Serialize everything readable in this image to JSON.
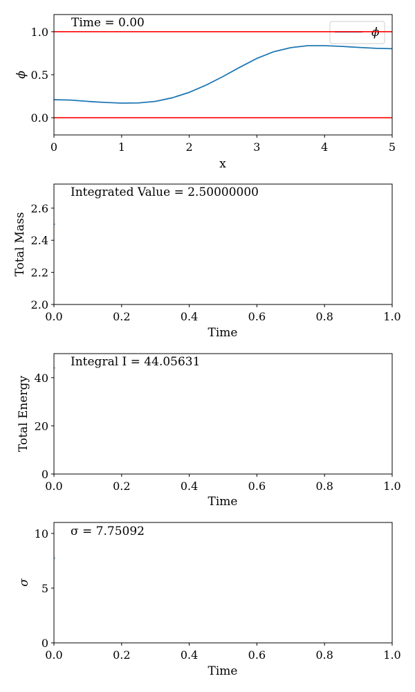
{
  "chart_data": [
    {
      "type": "line",
      "xlabel": "x",
      "ylabel": "ϕ",
      "xlim": [
        0,
        5
      ],
      "ylim": [
        -0.2,
        1.2
      ],
      "xticks": [
        0,
        1,
        2,
        3,
        4,
        5
      ],
      "xtick_labels": [
        "0",
        "1",
        "2",
        "3",
        "4",
        "5"
      ],
      "yticks": [
        0.0,
        0.5,
        1.0
      ],
      "ytick_labels": [
        "0.0",
        "0.5",
        "1.0"
      ],
      "annotation": "Time = 0.00",
      "legend_position": "top-right",
      "grid": false,
      "series": [
        {
          "name": "ϕ",
          "color": "#1f77b4",
          "x": [
            0,
            0.25,
            0.5,
            0.75,
            1.0,
            1.25,
            1.5,
            1.75,
            2.0,
            2.25,
            2.5,
            2.75,
            3.0,
            3.25,
            3.5,
            3.75,
            4.0,
            4.25,
            4.5,
            4.75,
            5.0
          ],
          "y": [
            0.21,
            0.205,
            0.19,
            0.178,
            0.17,
            0.172,
            0.19,
            0.232,
            0.295,
            0.38,
            0.48,
            0.588,
            0.69,
            0.768,
            0.815,
            0.838,
            0.838,
            0.83,
            0.818,
            0.808,
            0.803
          ]
        }
      ],
      "hlines": [
        {
          "y": 0,
          "color": "#ff0000"
        },
        {
          "y": 1,
          "color": "#ff0000"
        }
      ]
    },
    {
      "type": "line",
      "xlabel": "Time",
      "ylabel": "Total Mass",
      "xlim": [
        0,
        1
      ],
      "ylim": [
        2.0,
        2.75
      ],
      "xticks": [
        0,
        0.2,
        0.4,
        0.6,
        0.8,
        1.0
      ],
      "xtick_labels": [
        "0.0",
        "0.2",
        "0.4",
        "0.6",
        "0.8",
        "1.0"
      ],
      "yticks": [
        2.0,
        2.2,
        2.4,
        2.6
      ],
      "ytick_labels": [
        "2.0",
        "2.2",
        "2.4",
        "2.6"
      ],
      "annotation": "Integrated Value = 2.50000000",
      "grid": false,
      "series": [
        {
          "color": "#1f77b4",
          "x": [
            0
          ],
          "y": [
            2.5
          ]
        }
      ]
    },
    {
      "type": "line",
      "xlabel": "Time",
      "ylabel": "Total Energy",
      "xlim": [
        0,
        1
      ],
      "ylim": [
        0,
        50
      ],
      "xticks": [
        0,
        0.2,
        0.4,
        0.6,
        0.8,
        1.0
      ],
      "xtick_labels": [
        "0.0",
        "0.2",
        "0.4",
        "0.6",
        "0.8",
        "1.0"
      ],
      "yticks": [
        0,
        20,
        40
      ],
      "ytick_labels": [
        "0",
        "20",
        "40"
      ],
      "annotation": "Integral I = 44.05631",
      "grid": false,
      "series": [
        {
          "color": "#1f77b4",
          "x": [
            0
          ],
          "y": [
            44.05631
          ]
        }
      ]
    },
    {
      "type": "line",
      "xlabel": "Time",
      "ylabel": "σ",
      "xlim": [
        0,
        1
      ],
      "ylim": [
        0,
        11
      ],
      "xticks": [
        0,
        0.2,
        0.4,
        0.6,
        0.8,
        1.0
      ],
      "xtick_labels": [
        "0.0",
        "0.2",
        "0.4",
        "0.6",
        "0.8",
        "1.0"
      ],
      "yticks": [
        0,
        5,
        10
      ],
      "ytick_labels": [
        "0",
        "5",
        "10"
      ],
      "annotation": "σ = 7.75092",
      "grid": false,
      "series": [
        {
          "color": "#1f77b4",
          "x": [
            0
          ],
          "y": [
            7.75092
          ]
        }
      ]
    }
  ]
}
